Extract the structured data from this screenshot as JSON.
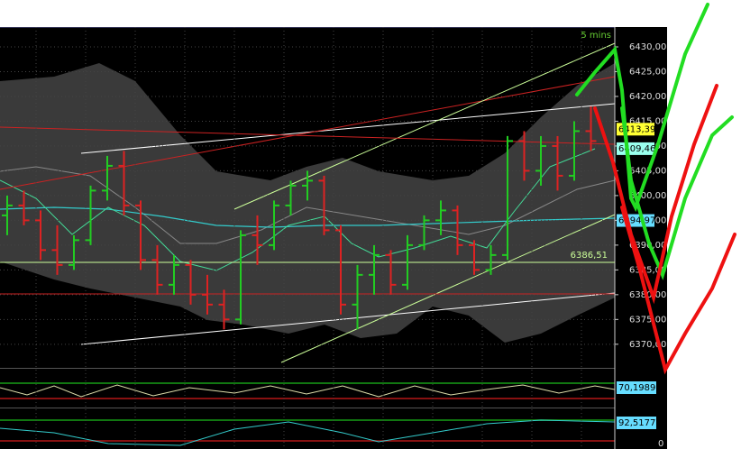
{
  "chart_data": {
    "type": "ohlc",
    "timeframe": "5 mins",
    "ylim": [
      6365.6,
      6434.0
    ],
    "yticks": [
      {
        "value": 6430,
        "label": "6430,00"
      },
      {
        "value": 6425,
        "label": "6425,00"
      },
      {
        "value": 6420,
        "label": "6420,00"
      },
      {
        "value": 6415,
        "label": "6415,00"
      },
      {
        "value": 6410,
        "label": "6410,00"
      },
      {
        "value": 6405,
        "label": "6405,00"
      },
      {
        "value": 6400,
        "label": "6400,00"
      },
      {
        "value": 6395,
        "label": "6395,00"
      },
      {
        "value": 6390,
        "label": "6390,00"
      },
      {
        "value": 6385,
        "label": "6385,00"
      },
      {
        "value": 6380,
        "label": "6380,00"
      },
      {
        "value": 6375,
        "label": "6375,00"
      },
      {
        "value": 6370,
        "label": "6370,00"
      }
    ],
    "up_color": "#22cc22",
    "down_color": "#dd2222",
    "grid": true,
    "open": [
      6396,
      6398,
      6395,
      6389,
      6386,
      6391,
      6401,
      6406,
      6398,
      6387,
      6382,
      6386,
      6380,
      6378,
      6375,
      6392,
      6390,
      6398,
      6402,
      6403,
      6393,
      6378,
      6384,
      6388,
      6382,
      6390,
      6395,
      6397,
      6390,
      6385,
      6388,
      6411,
      6405,
      6410,
      6404,
      6413
    ],
    "high": [
      6400,
      6401,
      6397,
      6394,
      6392,
      6402,
      6408,
      6409,
      6399,
      6390,
      6388,
      6387,
      6384,
      6381,
      6393,
      6396,
      6399,
      6403,
      6405,
      6404,
      6394,
      6386,
      6390,
      6389,
      6392,
      6396,
      6399,
      6398,
      6391,
      6390,
      6412,
      6413,
      6412,
      6412,
      6415,
      6418
    ],
    "low": [
      6392,
      6394,
      6387,
      6384,
      6385,
      6390,
      6399,
      6396,
      6385,
      6380,
      6380,
      6378,
      6376,
      6373,
      6374,
      6386,
      6389,
      6396,
      6399,
      6392,
      6376,
      6373,
      6380,
      6380,
      6381,
      6389,
      6392,
      6388,
      6384,
      6384,
      6387,
      6403,
      6402,
      6401,
      6403,
      6409
    ],
    "close": [
      6398,
      6395,
      6389,
      6386,
      6391,
      6401,
      6406,
      6398,
      6387,
      6382,
      6386,
      6380,
      6378,
      6375,
      6392,
      6390,
      6398,
      6402,
      6403,
      6393,
      6378,
      6384,
      6388,
      6382,
      6390,
      6395,
      6397,
      6390,
      6385,
      6388,
      6411,
      6405,
      6410,
      6404,
      6413,
      6411
    ],
    "reference_line": {
      "value": 6386.51,
      "label": "6386,51",
      "color": "#ccff99"
    },
    "price_tags": [
      {
        "value": 6413.39,
        "label": "6413,39",
        "color": "#ffff33"
      },
      {
        "value": 6409.46,
        "label": "6409,46",
        "color": "#99ffee"
      },
      {
        "value": 6394.97,
        "label": "6394,97",
        "color": "#66ddff"
      }
    ],
    "indicator_1": {
      "label": "70,1989"
    },
    "indicator_2": {
      "label": "92,5177",
      "tick": "0"
    }
  }
}
